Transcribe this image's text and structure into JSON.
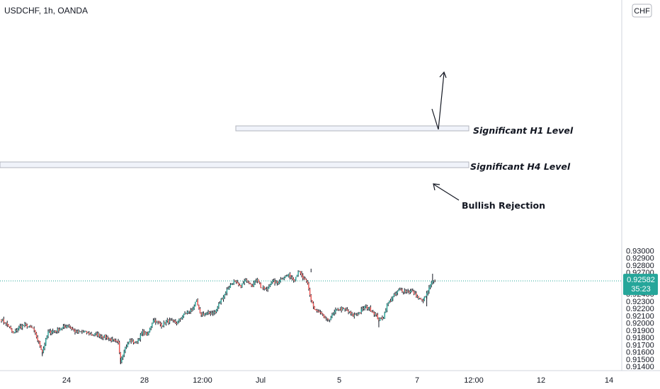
{
  "symbol_title": "USDCHF, 1h, OANDA",
  "currency_button": "CHF",
  "colors": {
    "up": "#26a69a",
    "down": "#ef5350",
    "wick": "#131722",
    "price_line": "#26a69a",
    "price_badge": "#26a69a",
    "zone_border": "#b2b5be",
    "zone_fill": "#f0f3fa"
  },
  "price_badge": {
    "price": "0.92582",
    "countdown": "35:23"
  },
  "chart_data": {
    "type": "candlestick",
    "ylim": [
      0.9138,
      0.9305
    ],
    "y_ticks": [
      "0.93000",
      "0.92900",
      "0.92800",
      "0.92700",
      "0.92600",
      "0.92500",
      "0.92400",
      "0.92300",
      "0.92200",
      "0.92100",
      "0.92000",
      "0.91900",
      "0.91800",
      "0.91700",
      "0.91600",
      "0.91500",
      "0.91400"
    ],
    "x_ticks": [
      "24",
      "28",
      "12:00",
      "Jul",
      "5",
      "7",
      "12:00",
      "12",
      "14"
    ],
    "last_price": 0.92582,
    "waypoints": [
      [
        0,
        0.9205
      ],
      [
        6,
        0.9196
      ],
      [
        10,
        0.9185
      ],
      [
        15,
        0.9194
      ],
      [
        20,
        0.9197
      ],
      [
        27,
        0.9192
      ],
      [
        32,
        0.9173
      ],
      [
        35,
        0.916
      ],
      [
        40,
        0.9187
      ],
      [
        48,
        0.919
      ],
      [
        57,
        0.9197
      ],
      [
        64,
        0.9187
      ],
      [
        70,
        0.9188
      ],
      [
        77,
        0.9184
      ],
      [
        82,
        0.9184
      ],
      [
        90,
        0.918
      ],
      [
        96,
        0.9175
      ],
      [
        100,
        0.9172
      ],
      [
        102,
        0.9148
      ],
      [
        105,
        0.9163
      ],
      [
        110,
        0.9176
      ],
      [
        115,
        0.9172
      ],
      [
        121,
        0.9187
      ],
      [
        125,
        0.9183
      ],
      [
        130,
        0.9205
      ],
      [
        137,
        0.9197
      ],
      [
        142,
        0.9203
      ],
      [
        150,
        0.92
      ],
      [
        157,
        0.9213
      ],
      [
        163,
        0.9218
      ],
      [
        167,
        0.923
      ],
      [
        170,
        0.9212
      ],
      [
        177,
        0.9213
      ],
      [
        183,
        0.9215
      ],
      [
        188,
        0.9232
      ],
      [
        194,
        0.9248
      ],
      [
        199,
        0.9258
      ],
      [
        204,
        0.925
      ],
      [
        210,
        0.926
      ],
      [
        215,
        0.9252
      ],
      [
        219,
        0.9262
      ],
      [
        222,
        0.925
      ],
      [
        227,
        0.9245
      ],
      [
        231,
        0.9258
      ],
      [
        236,
        0.9255
      ],
      [
        240,
        0.9262
      ],
      [
        246,
        0.9266
      ],
      [
        251,
        0.926
      ],
      [
        254,
        0.9272
      ],
      [
        259,
        0.926
      ],
      [
        262,
        0.9254
      ],
      [
        265,
        0.9232
      ],
      [
        268,
        0.9218
      ],
      [
        273,
        0.9213
      ],
      [
        279,
        0.9203
      ],
      [
        284,
        0.9212
      ],
      [
        288,
        0.922
      ],
      [
        295,
        0.9218
      ],
      [
        301,
        0.921
      ],
      [
        306,
        0.9214
      ],
      [
        311,
        0.9222
      ],
      [
        315,
        0.922
      ],
      [
        320,
        0.9212
      ],
      [
        323,
        0.9204
      ],
      [
        327,
        0.9208
      ],
      [
        330,
        0.9225
      ],
      [
        335,
        0.9236
      ],
      [
        341,
        0.9246
      ],
      [
        346,
        0.9244
      ],
      [
        351,
        0.9244
      ],
      [
        355,
        0.9238
      ],
      [
        360,
        0.923
      ],
      [
        363,
        0.9236
      ],
      [
        368,
        0.9255
      ],
      [
        371,
        0.9258
      ]
    ],
    "annotations": {
      "h1_level": "Significant H1 Level",
      "h4_level": "Significant H4 Level",
      "rejection": "Bullish Rejection"
    }
  }
}
